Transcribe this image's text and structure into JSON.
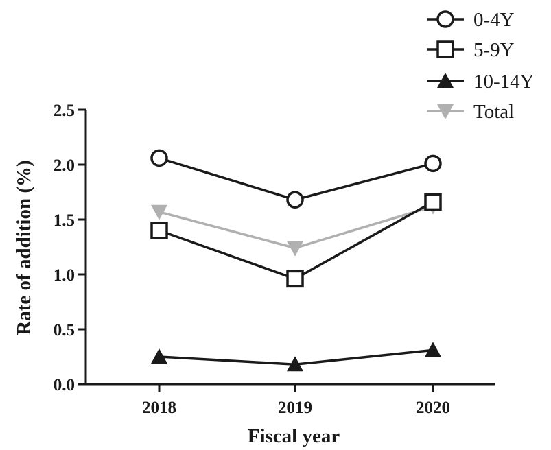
{
  "chart_data": {
    "type": "line",
    "title": "",
    "xlabel": "Fiscal year",
    "ylabel": "Rate of addition (%)",
    "categories": [
      "2018",
      "2019",
      "2020"
    ],
    "ylim": [
      0,
      2.5
    ],
    "yticks": [
      "0.0",
      "0.5",
      "1.0",
      "1.5",
      "2.0",
      "2.5"
    ],
    "grid": false,
    "legend_position": "top-right",
    "series": [
      {
        "name": "0-4Y",
        "values": [
          2.06,
          1.68,
          2.01
        ],
        "marker": "open-circle",
        "color": "#1a1a1a"
      },
      {
        "name": "5-9Y",
        "values": [
          1.4,
          0.96,
          1.66
        ],
        "marker": "open-square",
        "color": "#1a1a1a"
      },
      {
        "name": "10-14Y",
        "values": [
          0.25,
          0.18,
          0.31
        ],
        "marker": "filled-triangle-up",
        "color": "#1a1a1a"
      },
      {
        "name": "Total",
        "values": [
          1.57,
          1.24,
          1.62
        ],
        "marker": "filled-triangle-down",
        "color": "#b0b0b0"
      }
    ]
  }
}
